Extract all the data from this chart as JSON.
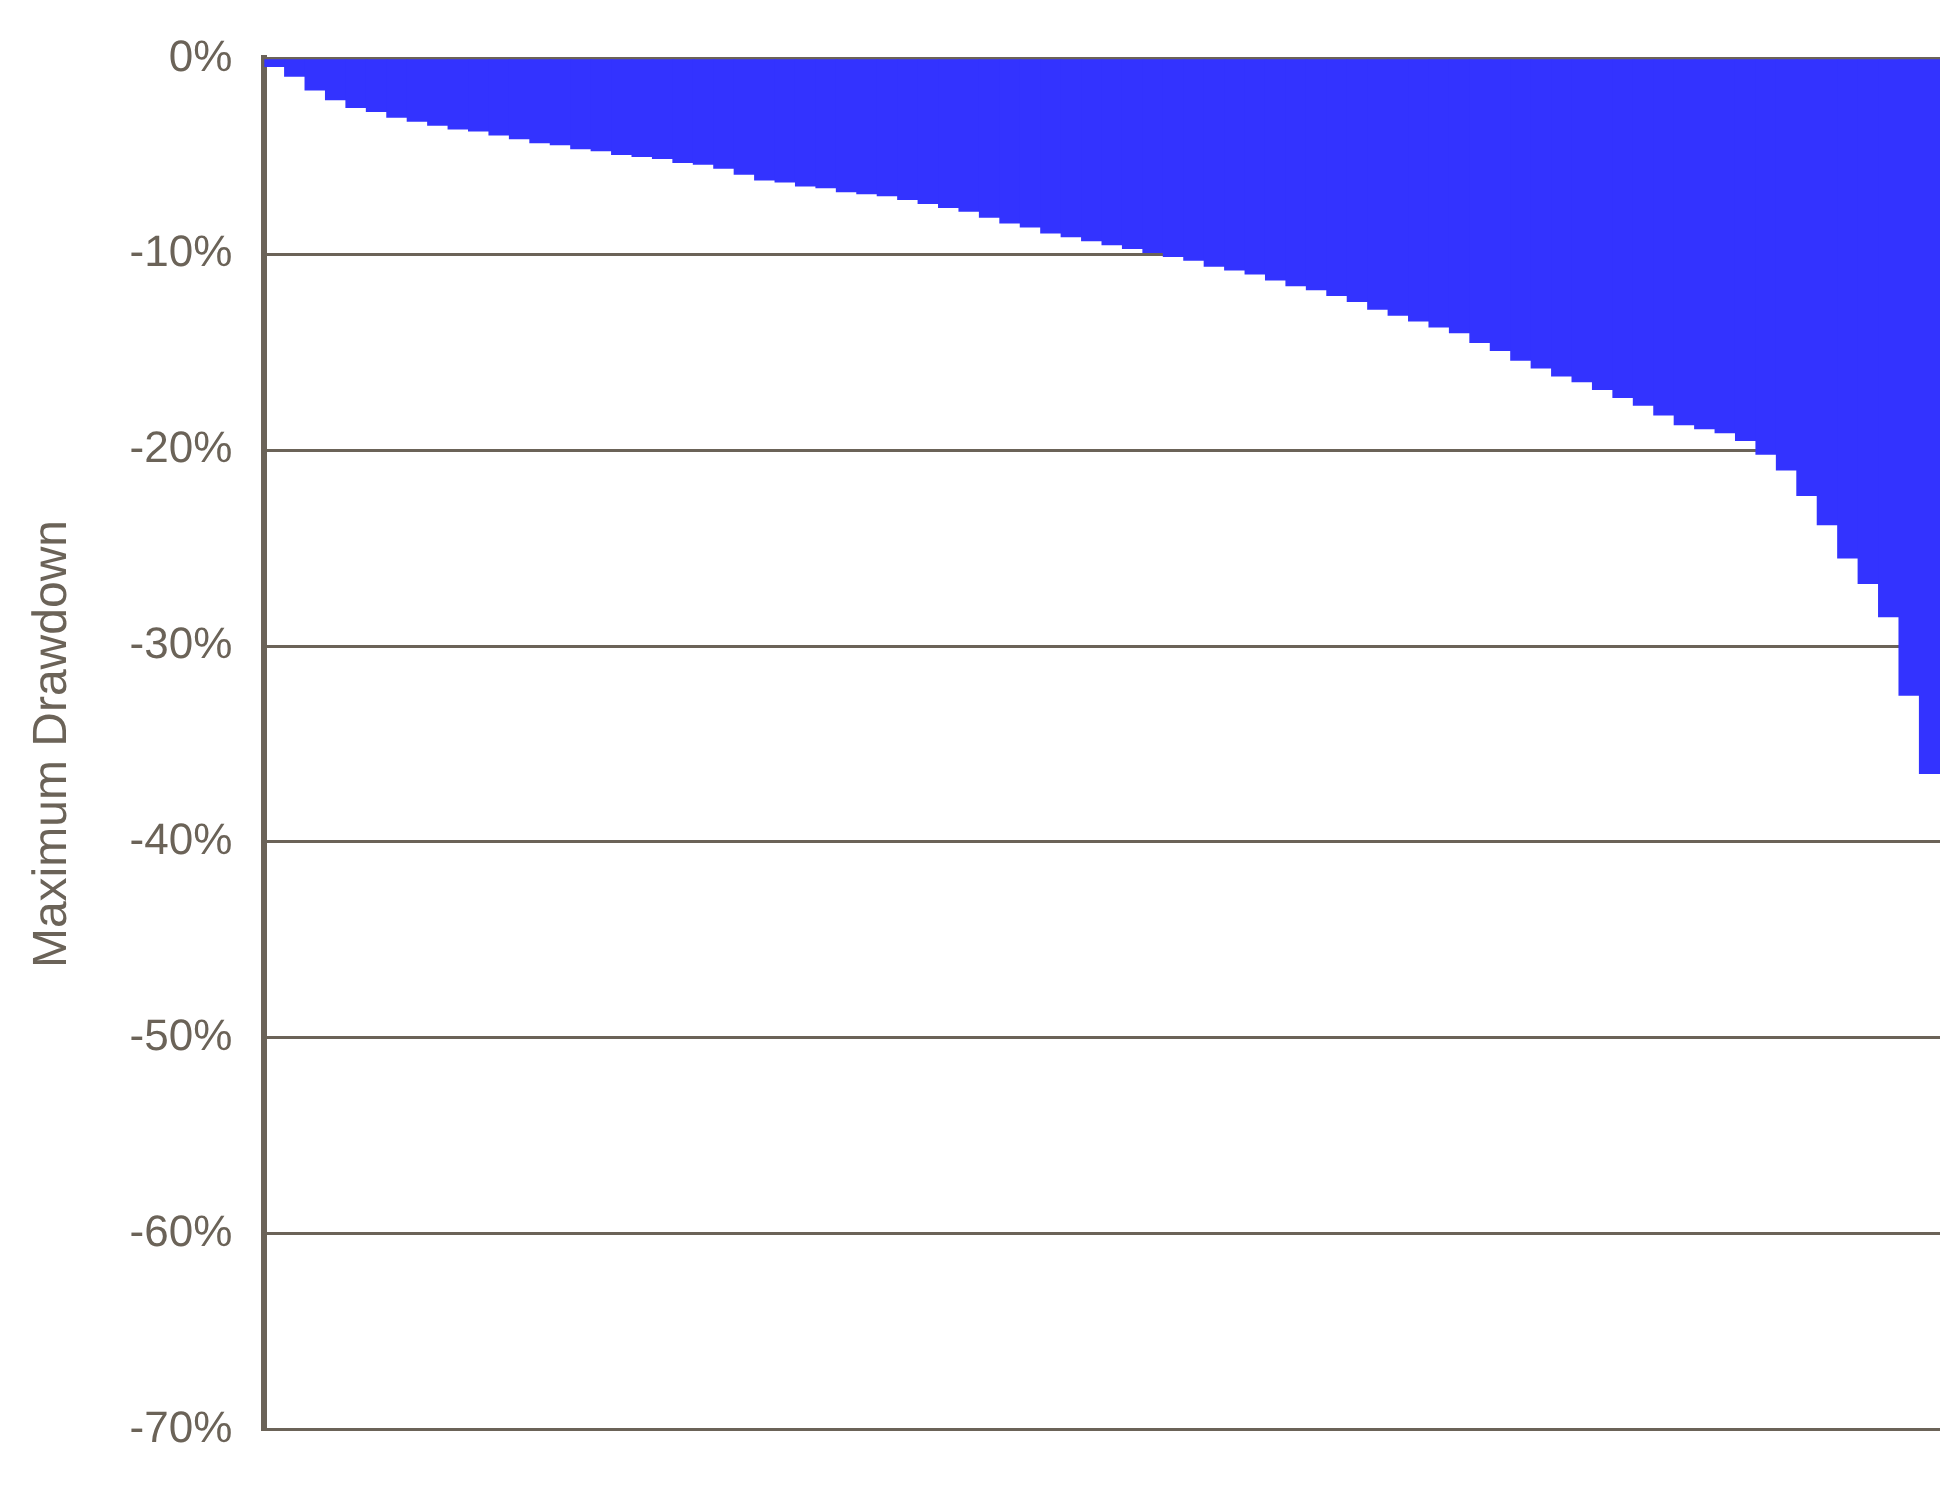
{
  "chart_data": {
    "type": "bar",
    "ylabel": "Maximum Drawdown",
    "color": "#3333ff",
    "categories": [
      null,
      null,
      null,
      null,
      null,
      null,
      null,
      null,
      null,
      null,
      null,
      null,
      null,
      null,
      null,
      null,
      null,
      null,
      null,
      null,
      null,
      null,
      null,
      null,
      null,
      null,
      null,
      null,
      null,
      null,
      null,
      null,
      null,
      null,
      null,
      null,
      null,
      null,
      null,
      null,
      null,
      null,
      null,
      null,
      null,
      null,
      null,
      null,
      null,
      null,
      null,
      null,
      null,
      null,
      null,
      null,
      null,
      null,
      null,
      null,
      null,
      null,
      null,
      null,
      null,
      null,
      null,
      null,
      null,
      null,
      null,
      null,
      null,
      null,
      null,
      null,
      null,
      null,
      null,
      null,
      null,
      null
    ],
    "values": [
      -0.4,
      -0.9,
      -1.6,
      -2.1,
      -2.5,
      -2.7,
      -3.0,
      -3.2,
      -3.4,
      -3.6,
      -3.7,
      -3.9,
      -4.1,
      -4.3,
      -4.4,
      -4.6,
      -4.7,
      -4.9,
      -5.0,
      -5.1,
      -5.3,
      -5.4,
      -5.6,
      -5.9,
      -6.2,
      -6.3,
      -6.5,
      -6.6,
      -6.8,
      -6.9,
      -7.0,
      -7.2,
      -7.4,
      -7.6,
      -7.8,
      -8.1,
      -8.4,
      -8.6,
      -8.9,
      -9.1,
      -9.3,
      -9.5,
      -9.7,
      -9.9,
      -10.1,
      -10.3,
      -10.6,
      -10.8,
      -11.0,
      -11.3,
      -11.6,
      -11.8,
      -12.1,
      -12.4,
      -12.8,
      -13.1,
      -13.4,
      -13.7,
      -14.0,
      -14.5,
      -14.9,
      -15.4,
      -15.8,
      -16.2,
      -16.5,
      -16.9,
      -17.3,
      -17.7,
      -18.2,
      -18.7,
      -18.9,
      -19.1,
      -19.5,
      -20.2,
      -21.0,
      -22.3,
      -23.8,
      -25.5,
      -26.8,
      -28.5,
      -32.5,
      -36.5
    ],
    "ylim": [
      -70,
      0
    ],
    "yticks": [
      {
        "value": 0,
        "label": "0%"
      },
      {
        "value": -10,
        "label": "-10%"
      },
      {
        "value": -20,
        "label": "-20%"
      },
      {
        "value": -30,
        "label": "-30%"
      },
      {
        "value": -40,
        "label": "-40%"
      },
      {
        "value": -50,
        "label": "-50%"
      },
      {
        "value": -60,
        "label": "-60%"
      },
      {
        "value": -70,
        "label": "-70%"
      }
    ],
    "grid": "y",
    "legend": false
  }
}
